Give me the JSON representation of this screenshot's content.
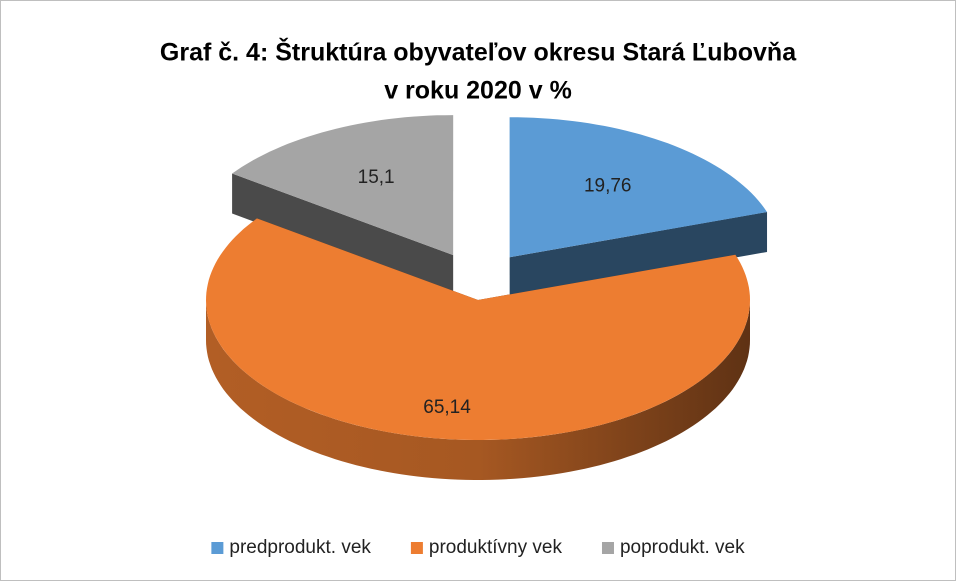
{
  "chart_data": {
    "type": "pie",
    "three_d": true,
    "title": [
      "Graf č. 4: Štruktúra obyvateľov okresu Stará Ľubovňa",
      "v roku 2020 v %"
    ],
    "categories": [
      "predprodukt. vek",
      "produktívny vek",
      "poprodukt. vek"
    ],
    "values": [
      19.76,
      65.14,
      15.1
    ],
    "value_labels": [
      "19,76",
      "65,14",
      "15,1"
    ],
    "colors": [
      "#5b9bd5",
      "#ed7d31",
      "#a5a5a5"
    ],
    "exploded": [
      true,
      false,
      true
    ],
    "legend": "bottom"
  }
}
